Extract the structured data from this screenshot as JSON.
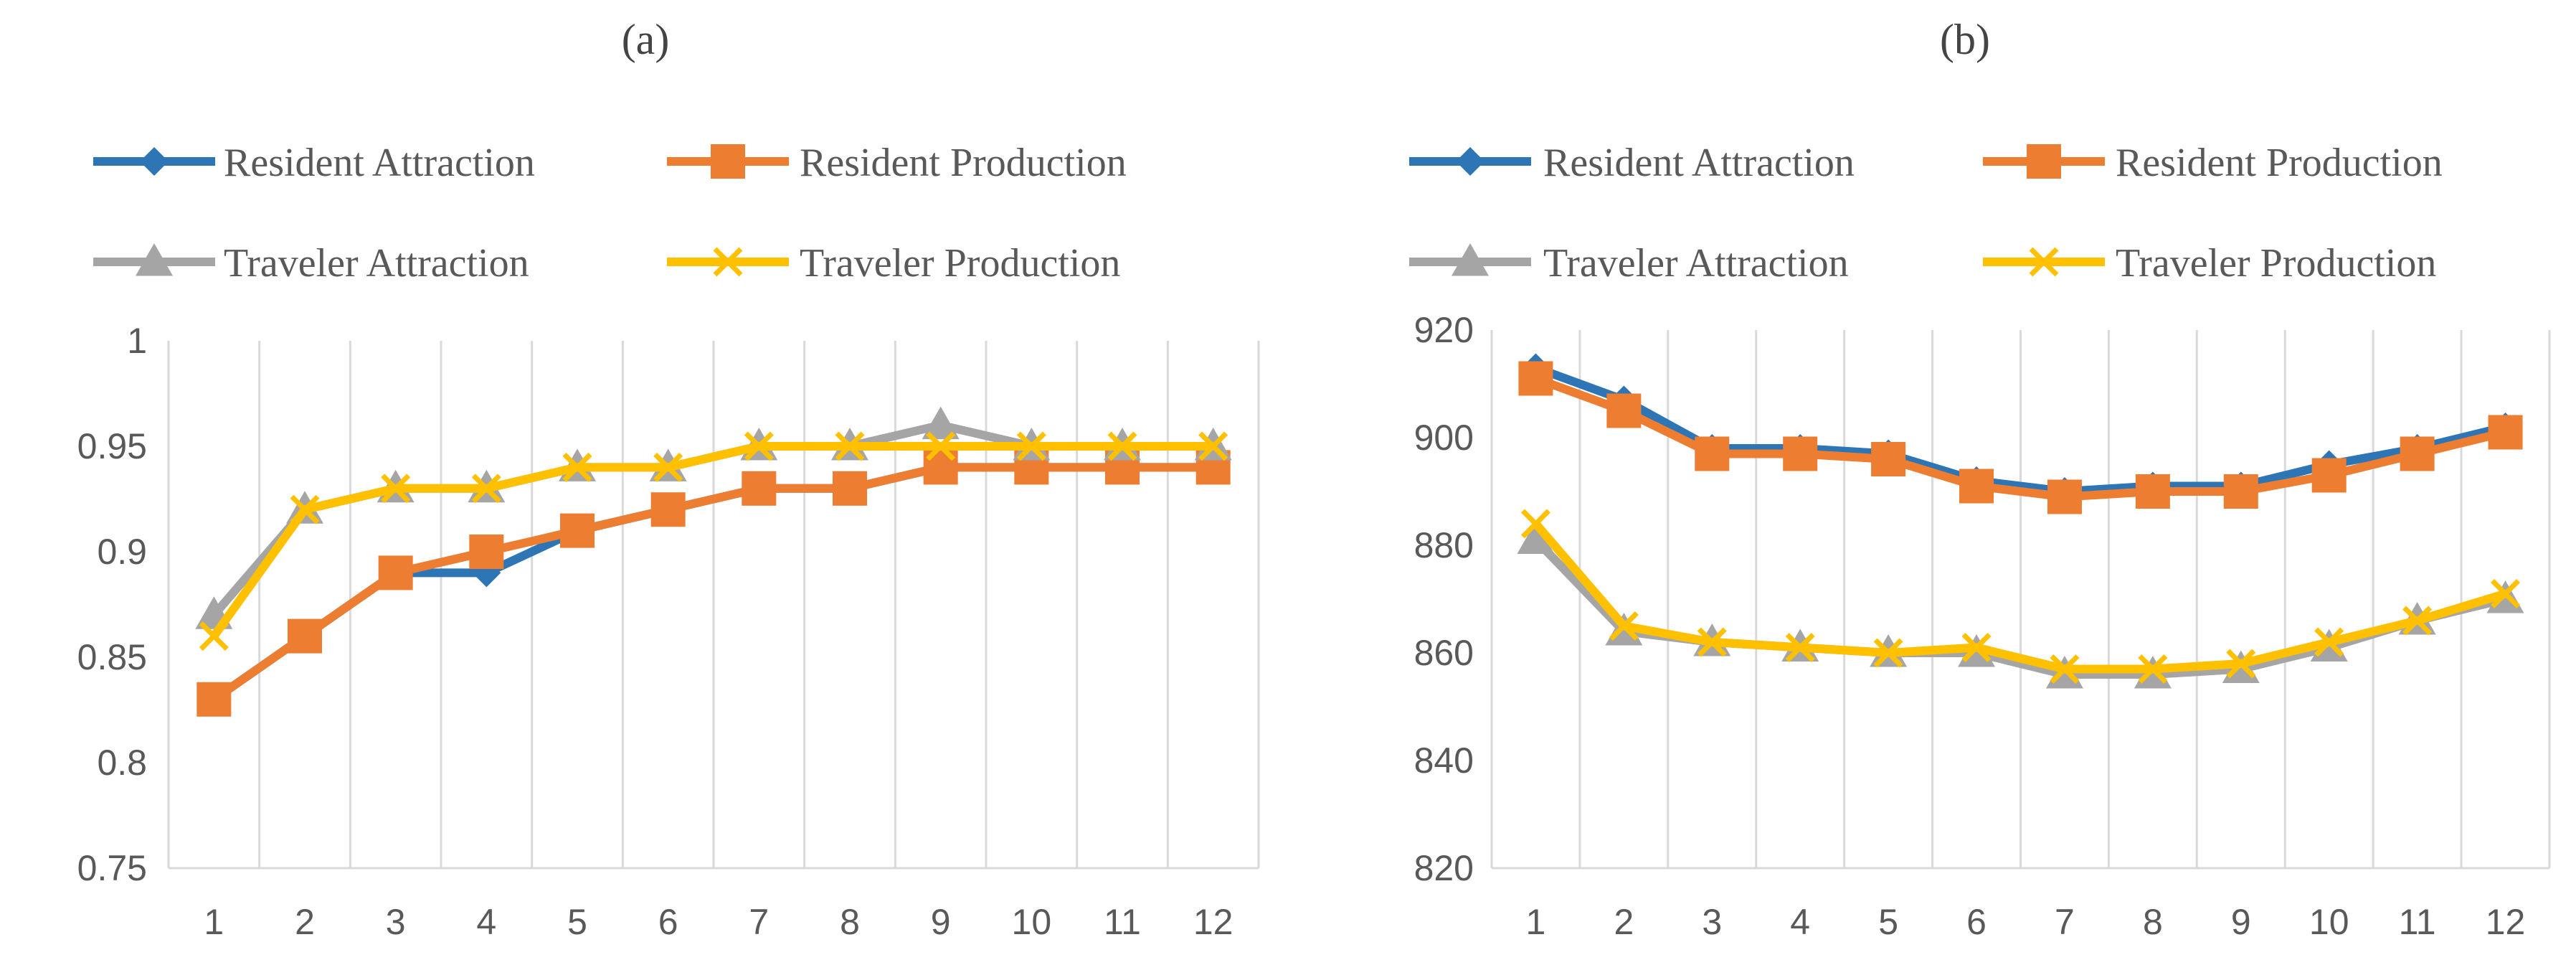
{
  "chart_data": [
    {
      "type": "line",
      "panel_label": "(a)",
      "categories": [
        "1",
        "2",
        "3",
        "4",
        "5",
        "6",
        "7",
        "8",
        "9",
        "10",
        "11",
        "12"
      ],
      "ylim": [
        0.75,
        1
      ],
      "yticks": [
        "0.75",
        "0.8",
        "0.85",
        "0.9",
        "0.95",
        "1"
      ],
      "ytick_values": [
        0.75,
        0.8,
        0.85,
        0.9,
        0.95,
        1
      ],
      "grid": "vertical",
      "legend_position": "top",
      "series": [
        {
          "name": "Resident Attraction",
          "color": "#2E75B6",
          "marker": "diamond",
          "values": [
            0.83,
            0.86,
            0.89,
            0.89,
            0.91,
            0.92,
            0.93,
            0.93,
            0.94,
            0.94,
            0.94,
            0.94
          ]
        },
        {
          "name": "Resident Production",
          "color": "#ED7D31",
          "marker": "square",
          "values": [
            0.83,
            0.86,
            0.89,
            0.9,
            0.91,
            0.92,
            0.93,
            0.93,
            0.94,
            0.94,
            0.94,
            0.94
          ]
        },
        {
          "name": "Traveler Attraction",
          "color": "#A5A5A5",
          "marker": "triangle",
          "values": [
            0.87,
            0.92,
            0.93,
            0.93,
            0.94,
            0.94,
            0.95,
            0.95,
            0.96,
            0.95,
            0.95,
            0.95
          ]
        },
        {
          "name": "Traveler Production",
          "color": "#FFC000",
          "marker": "x",
          "values": [
            0.86,
            0.92,
            0.93,
            0.93,
            0.94,
            0.94,
            0.95,
            0.95,
            0.95,
            0.95,
            0.95,
            0.95
          ]
        }
      ]
    },
    {
      "type": "line",
      "panel_label": "(b)",
      "categories": [
        "1",
        "2",
        "3",
        "4",
        "5",
        "6",
        "7",
        "8",
        "9",
        "10",
        "11",
        "12"
      ],
      "ylim": [
        820,
        920
      ],
      "yticks": [
        "820",
        "840",
        "860",
        "880",
        "900",
        "920"
      ],
      "ytick_values": [
        820,
        840,
        860,
        880,
        900,
        920
      ],
      "grid": "vertical",
      "legend_position": "top",
      "series": [
        {
          "name": "Resident Attraction",
          "color": "#2E75B6",
          "marker": "diamond",
          "values": [
            913,
            907,
            898,
            898,
            897,
            892,
            890,
            891,
            891,
            895,
            898,
            902
          ]
        },
        {
          "name": "Resident Production",
          "color": "#ED7D31",
          "marker": "square",
          "values": [
            911,
            905,
            897,
            897,
            896,
            891,
            889,
            890,
            890,
            893,
            897,
            901
          ]
        },
        {
          "name": "Traveler Attraction",
          "color": "#A5A5A5",
          "marker": "triangle",
          "values": [
            881,
            864,
            862,
            861,
            860,
            860,
            856,
            856,
            857,
            861,
            866,
            870
          ]
        },
        {
          "name": "Traveler Production",
          "color": "#FFC000",
          "marker": "x",
          "values": [
            884,
            865,
            862,
            861,
            860,
            861,
            857,
            857,
            858,
            862,
            866,
            871
          ]
        }
      ]
    }
  ]
}
